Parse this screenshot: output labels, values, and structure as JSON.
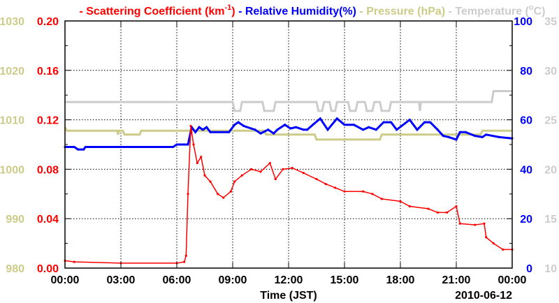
{
  "chart_data": {
    "type": "line",
    "xlabel": "Time (JST)",
    "date_label": "2010-06-12",
    "x_ticks": [
      "00:00",
      "03:00",
      "06:00",
      "09:00",
      "12:00",
      "15:00",
      "18:00",
      "21:00",
      "00:00"
    ],
    "xlim_hours": [
      0,
      24
    ],
    "grid": true,
    "legend": [
      {
        "prefix": "- ",
        "text": "Scattering Coefficient (km",
        "sup": "-1",
        "suffix": ")",
        "color": "#ff0000"
      },
      {
        "prefix": " - ",
        "text": "Relative Humidity(%)",
        "sup": "",
        "suffix": "",
        "color": "#0000ff"
      },
      {
        "prefix": " - ",
        "text": "Pressure (hPa)",
        "sup": "",
        "suffix": "",
        "color": "#cccc88"
      },
      {
        "prefix": " - ",
        "text": "Temperature (",
        "sup": "o",
        "suffix": "C)",
        "color": "#cccccc"
      }
    ],
    "axes": {
      "pressure": {
        "ylim": [
          980,
          1030
        ],
        "ticks": [
          "980",
          "990",
          "1000",
          "1010",
          "1020",
          "1030"
        ],
        "color": "#cccc88"
      },
      "scattering": {
        "ylim": [
          0,
          0.2
        ],
        "ticks": [
          "0.00",
          "0.04",
          "0.08",
          "0.12",
          "0.16",
          "0.20"
        ],
        "color": "#ff0000"
      },
      "humidity": {
        "ylim": [
          0,
          100
        ],
        "ticks": [
          "0",
          "20",
          "40",
          "60",
          "80",
          "100"
        ],
        "color": "#0000ff"
      },
      "temperature": {
        "ylim": [
          10,
          35
        ],
        "ticks": [
          "10",
          "15",
          "20",
          "25",
          "30",
          "35"
        ],
        "color": "#cccccc"
      }
    },
    "series": [
      {
        "name": "Temperature",
        "axis": "temperature",
        "color": "#cccccc",
        "step": true,
        "points": [
          [
            0,
            26.8
          ],
          [
            9,
            26.8
          ],
          [
            9.1,
            25.9
          ],
          [
            9.4,
            25.9
          ],
          [
            9.5,
            26.8
          ],
          [
            10.6,
            26.8
          ],
          [
            10.7,
            25.9
          ],
          [
            11.2,
            25.9
          ],
          [
            11.3,
            26.8
          ],
          [
            13.5,
            26.8
          ],
          [
            13.6,
            25.9
          ],
          [
            13.8,
            25.9
          ],
          [
            13.9,
            26.8
          ],
          [
            14.2,
            26.8
          ],
          [
            14.3,
            25.9
          ],
          [
            14.5,
            25.9
          ],
          [
            14.6,
            26.8
          ],
          [
            15.2,
            26.8
          ],
          [
            15.3,
            25.9
          ],
          [
            15.6,
            25.9
          ],
          [
            15.7,
            26.8
          ],
          [
            16.1,
            26.8
          ],
          [
            16.2,
            25.9
          ],
          [
            16.5,
            25.9
          ],
          [
            16.6,
            26.8
          ],
          [
            16.9,
            26.8
          ],
          [
            17,
            25.9
          ],
          [
            17.4,
            25.9
          ],
          [
            17.5,
            26.8
          ],
          [
            19,
            26.8
          ],
          [
            19.05,
            25.9
          ],
          [
            19.1,
            26.8
          ],
          [
            22.9,
            26.8
          ],
          [
            23,
            27.9
          ],
          [
            24,
            27.9
          ]
        ]
      },
      {
        "name": "Pressure",
        "axis": "pressure",
        "color": "#cccc88",
        "step": true,
        "points": [
          [
            0,
            1008.5
          ],
          [
            0.1,
            1007.8
          ],
          [
            2.8,
            1007.8
          ],
          [
            2.85,
            1007
          ],
          [
            2.9,
            1007.8
          ],
          [
            3.1,
            1007.8
          ],
          [
            3.2,
            1007
          ],
          [
            4,
            1007
          ],
          [
            4.1,
            1007.8
          ],
          [
            10.7,
            1007.8
          ],
          [
            10.8,
            1007
          ],
          [
            13.4,
            1007
          ],
          [
            13.5,
            1006
          ],
          [
            16.9,
            1006
          ],
          [
            17,
            1007
          ],
          [
            22.3,
            1007
          ],
          [
            22.4,
            1007.8
          ],
          [
            24,
            1007.8
          ]
        ]
      },
      {
        "name": "Relative Humidity",
        "axis": "humidity",
        "color": "#0000ff",
        "step": false,
        "points": [
          [
            0,
            49
          ],
          [
            0.5,
            49
          ],
          [
            0.7,
            48
          ],
          [
            1,
            48
          ],
          [
            1.1,
            49
          ],
          [
            5.8,
            49
          ],
          [
            6,
            50
          ],
          [
            6.6,
            50
          ],
          [
            6.8,
            57
          ],
          [
            7,
            55
          ],
          [
            7.2,
            57
          ],
          [
            7.4,
            56
          ],
          [
            7.6,
            57
          ],
          [
            7.8,
            55
          ],
          [
            8.8,
            55
          ],
          [
            9.1,
            58
          ],
          [
            9.3,
            59
          ],
          [
            9.6,
            57.5
          ],
          [
            10.2,
            56
          ],
          [
            10.5,
            54.5
          ],
          [
            10.9,
            56
          ],
          [
            11.2,
            54.5
          ],
          [
            11.4,
            56
          ],
          [
            11.8,
            58
          ],
          [
            12.1,
            56.5
          ],
          [
            12.4,
            57
          ],
          [
            12.8,
            56
          ],
          [
            13,
            56
          ],
          [
            13.3,
            58
          ],
          [
            13.7,
            60.5
          ],
          [
            14.1,
            56
          ],
          [
            14.6,
            60.5
          ],
          [
            15,
            58
          ],
          [
            15.5,
            58
          ],
          [
            16,
            56
          ],
          [
            16.3,
            57
          ],
          [
            16.7,
            56
          ],
          [
            17.1,
            59
          ],
          [
            17.5,
            59
          ],
          [
            17.8,
            56
          ],
          [
            18.5,
            60
          ],
          [
            18.9,
            56
          ],
          [
            19.3,
            59
          ],
          [
            19.6,
            59
          ],
          [
            20,
            56
          ],
          [
            20.3,
            53.5
          ],
          [
            20.6,
            53
          ],
          [
            21,
            52
          ],
          [
            21.2,
            55
          ],
          [
            21.5,
            55
          ],
          [
            22,
            53.5
          ],
          [
            22.4,
            53
          ],
          [
            22.6,
            54
          ],
          [
            23.3,
            53
          ],
          [
            24,
            52.5
          ]
        ]
      },
      {
        "name": "Scattering Coefficient",
        "axis": "scattering",
        "color": "#ff0000",
        "step": false,
        "points": [
          [
            0,
            0.006
          ],
          [
            0.5,
            0.005
          ],
          [
            3,
            0.004
          ],
          [
            6,
            0.004
          ],
          [
            6.4,
            0.005
          ],
          [
            6.5,
            0.01
          ],
          [
            6.6,
            0.06
          ],
          [
            6.75,
            0.115
          ],
          [
            6.9,
            0.1
          ],
          [
            7.1,
            0.085
          ],
          [
            7.3,
            0.09
          ],
          [
            7.5,
            0.075
          ],
          [
            7.8,
            0.07
          ],
          [
            8.2,
            0.06
          ],
          [
            8.5,
            0.057
          ],
          [
            8.9,
            0.062
          ],
          [
            9.1,
            0.07
          ],
          [
            9.5,
            0.075
          ],
          [
            10,
            0.08
          ],
          [
            10.5,
            0.078
          ],
          [
            11,
            0.085
          ],
          [
            11.3,
            0.072
          ],
          [
            11.7,
            0.08
          ],
          [
            12.2,
            0.081
          ],
          [
            12.8,
            0.077
          ],
          [
            13.5,
            0.072
          ],
          [
            14,
            0.068
          ],
          [
            14.5,
            0.065
          ],
          [
            15,
            0.062
          ],
          [
            16,
            0.062
          ],
          [
            16.5,
            0.06
          ],
          [
            17,
            0.056
          ],
          [
            18,
            0.054
          ],
          [
            18.5,
            0.05
          ],
          [
            19.5,
            0.048
          ],
          [
            20,
            0.045
          ],
          [
            20.5,
            0.045
          ],
          [
            21,
            0.05
          ],
          [
            21.2,
            0.036
          ],
          [
            22,
            0.035
          ],
          [
            22.5,
            0.036
          ],
          [
            22.6,
            0.025
          ],
          [
            23,
            0.02
          ],
          [
            23.5,
            0.015
          ],
          [
            24,
            0.015
          ]
        ]
      }
    ]
  }
}
